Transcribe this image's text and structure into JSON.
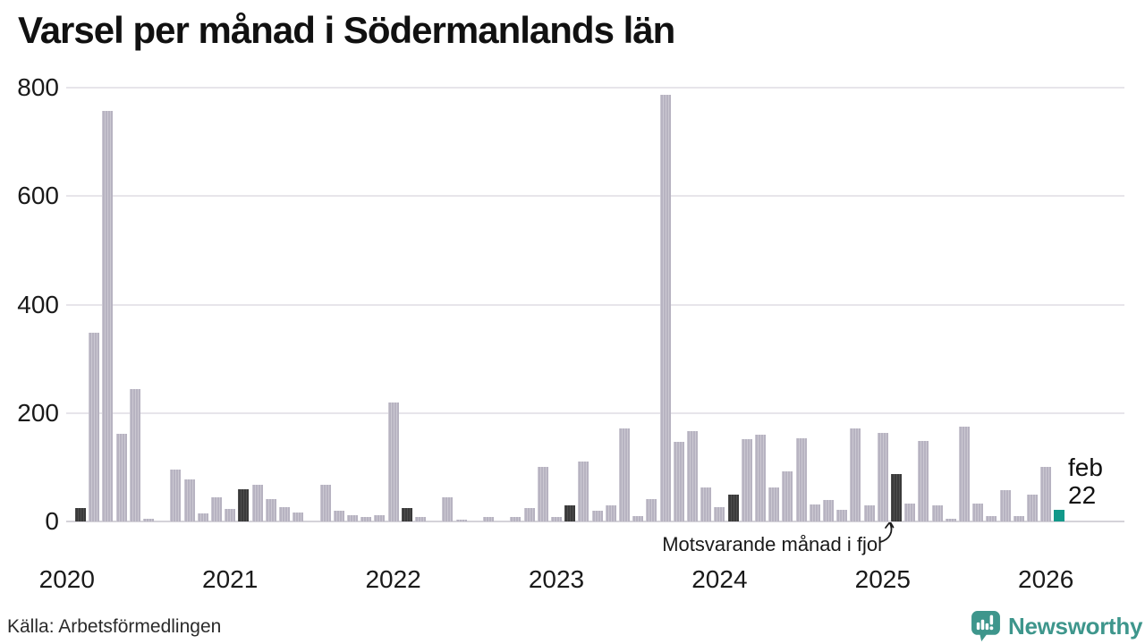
{
  "header": {
    "title": "Varsel per månad i Södermanlands län"
  },
  "chart_data": {
    "type": "bar",
    "title": "Varsel per månad i Södermanlands län",
    "start_month": "2020-02",
    "end_month": "2026-02",
    "values": [
      25,
      348,
      757,
      161,
      244,
      5,
      0,
      95,
      77,
      15,
      45,
      23,
      60,
      67,
      42,
      27,
      17,
      0,
      67,
      20,
      12,
      8,
      11,
      220,
      24,
      9,
      0,
      45,
      4,
      0,
      8,
      0,
      8,
      24,
      100,
      8,
      30,
      110,
      19,
      30,
      172,
      10,
      42,
      787,
      146,
      167,
      63,
      26,
      50,
      152,
      160,
      63,
      92,
      154,
      32,
      40,
      22,
      171,
      30,
      163,
      87,
      33,
      148,
      30,
      5,
      175,
      33,
      10,
      57,
      10,
      49,
      100,
      22
    ],
    "ylim": [
      0,
      800
    ],
    "yticks": [
      0,
      200,
      400,
      600,
      800
    ],
    "years": [
      "2020",
      "2021",
      "2022",
      "2023",
      "2024",
      "2025",
      "2026"
    ],
    "colors": {
      "bar": "#b7b3c1",
      "highlight": "#3a3a3a",
      "current": "#12998a",
      "gridline": "#e7e5ea",
      "axis": "#d5d3d9"
    },
    "grid": "horizontal only",
    "highlighted_months": "februari varje år (mörka staplar)",
    "annotation": {
      "text": "Motsvarande månad i fjol",
      "target_month": "2025-02",
      "target_value": 87
    },
    "last_point_label": {
      "line1": "feb",
      "line2": "22",
      "month": "2026-02",
      "value": 22
    }
  },
  "footer": {
    "source": "Källa: Arbetsförmedlingen",
    "brand": "Newsworthy",
    "brand_color": "#3e968c",
    "brand_icon": "newsworthy-speech-bubble-bar-chart-icon"
  }
}
